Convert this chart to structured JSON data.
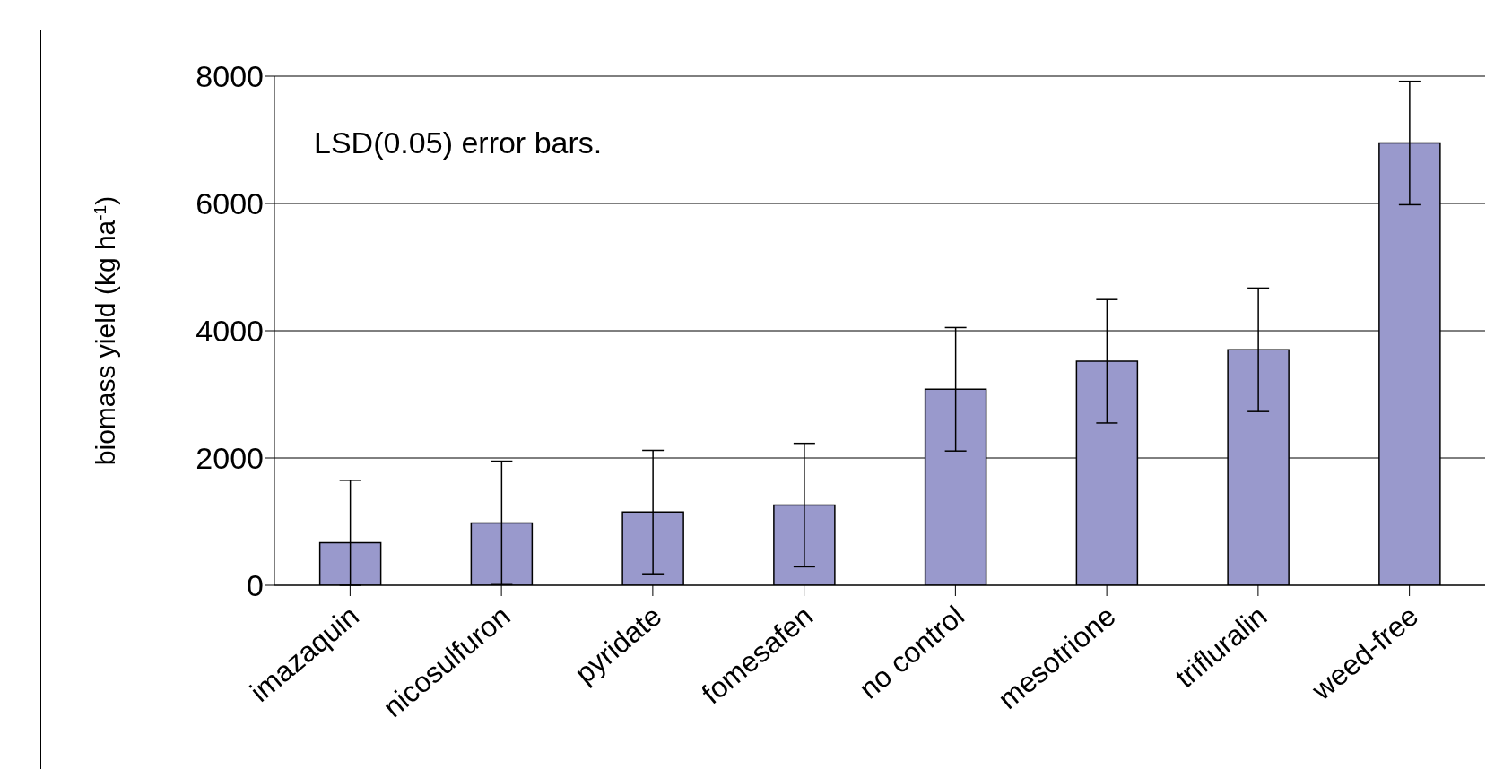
{
  "chart_data": {
    "type": "bar",
    "ylabel": "biomass yield (kg ha$^{-1}$)",
    "categories": [
      "imazaquin",
      "nicosulfuron",
      "pyridate",
      "fomesafen",
      "no control",
      "mesotrione",
      "trifluralin",
      "weed-free"
    ],
    "values": [
      670,
      980,
      1150,
      1260,
      3080,
      3520,
      3700,
      6950
    ],
    "errors": [
      [
        0,
        1650
      ],
      970,
      970,
      970,
      970,
      970,
      970,
      970
    ],
    "color": "#9999cc",
    "ylim": [
      0,
      8000
    ],
    "yticks": [
      0,
      2000,
      4000,
      6000,
      8000
    ],
    "grid": "y",
    "annotations": [
      "LSD(0.05) error bars."
    ]
  }
}
